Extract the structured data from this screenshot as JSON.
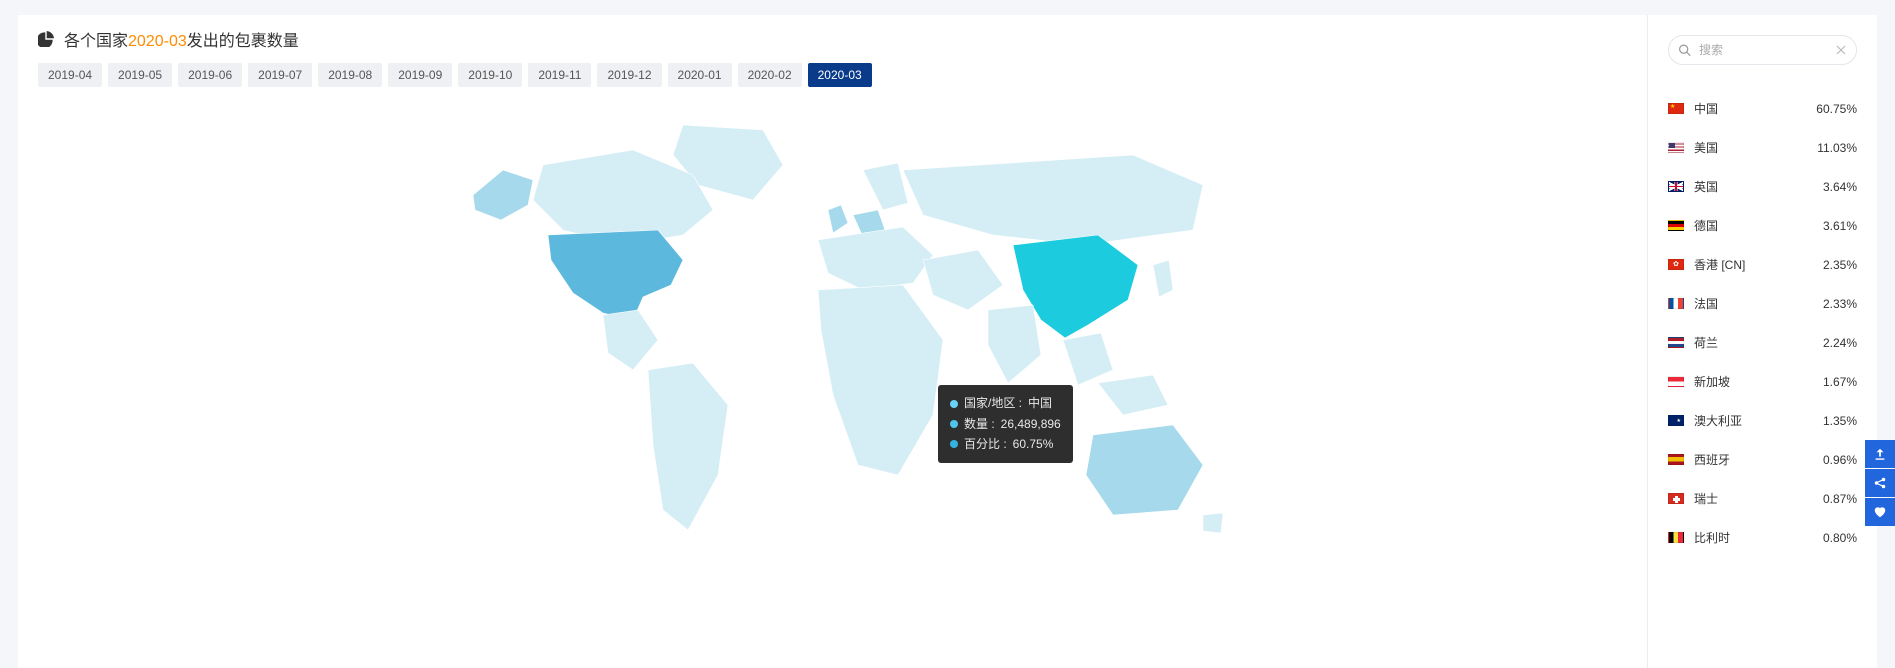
{
  "header": {
    "title_prefix": "各个国家",
    "title_highlight": "2020-03",
    "title_suffix": "发出的包裹数量"
  },
  "tabs": {
    "items": [
      "2019-04",
      "2019-05",
      "2019-06",
      "2019-07",
      "2019-08",
      "2019-09",
      "2019-10",
      "2019-11",
      "2019-12",
      "2020-01",
      "2020-02",
      "2020-03"
    ],
    "active_index": 11
  },
  "tooltip": {
    "dot_colors": [
      "#69d2f5",
      "#4fc3ea",
      "#34b3e0"
    ],
    "line1_label": "国家/地区 : ",
    "line1_value": "中国",
    "line2_label": "数量 : ",
    "line2_value": "26,489,896",
    "line3_label": "百分比 : ",
    "line3_value": "60.75%"
  },
  "search": {
    "placeholder": "搜索"
  },
  "countries": [
    {
      "flag": "cn",
      "name": "中国",
      "pct": "60.75%"
    },
    {
      "flag": "us",
      "name": "美国",
      "pct": "11.03%"
    },
    {
      "flag": "gb",
      "name": "英国",
      "pct": "3.64%"
    },
    {
      "flag": "de",
      "name": "德国",
      "pct": "3.61%"
    },
    {
      "flag": "hk",
      "name": "香港 [CN]",
      "pct": "2.35%"
    },
    {
      "flag": "fr",
      "name": "法国",
      "pct": "2.33%"
    },
    {
      "flag": "nl",
      "name": "荷兰",
      "pct": "2.24%"
    },
    {
      "flag": "sg",
      "name": "新加坡",
      "pct": "1.67%"
    },
    {
      "flag": "au",
      "name": "澳大利亚",
      "pct": "1.35%"
    },
    {
      "flag": "es",
      "name": "西班牙",
      "pct": "0.96%"
    },
    {
      "flag": "ch",
      "name": "瑞士",
      "pct": "0.87%"
    },
    {
      "flag": "be",
      "name": "比利时",
      "pct": "0.80%"
    }
  ],
  "colors": {
    "page_bg": "#f5f6fa",
    "panel_bg": "#ffffff",
    "tab_bg": "#eef0f3",
    "tab_active_bg": "#0a3a8a",
    "map_light": "#d5eef5",
    "map_med": "#a6d9ec",
    "map_us": "#5cb9dd",
    "map_cn": "#1cccde",
    "tooltip_bg": "rgba(0,0,0,0.82)",
    "fab_bg": "#2266dd",
    "title_highlight": "#ff8c00"
  }
}
